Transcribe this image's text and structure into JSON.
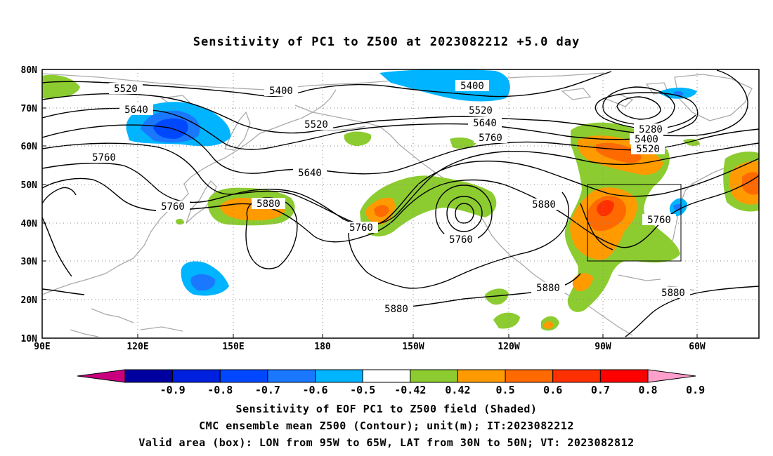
{
  "title": "Sensitivity of PC1 to Z500 at 2023082212 +5.0 day",
  "lat_labels": [
    "80N",
    "70N",
    "60N",
    "50N",
    "40N",
    "30N",
    "20N",
    "10N"
  ],
  "lon_labels": [
    "90E",
    "120E",
    "150E",
    "180",
    "150W",
    "120W",
    "90W",
    "60W"
  ],
  "contour_labels": [
    "5400",
    "5520",
    "5640",
    "5760",
    "5760",
    "5880",
    "5520",
    "5400",
    "5520",
    "5640",
    "5760",
    "5640",
    "5760",
    "5880",
    "5280",
    "5400",
    "5520",
    "5880",
    "5760",
    "5880",
    "5880",
    "5760"
  ],
  "colorbar": {
    "colors": [
      "#c8007f",
      "#0000a0",
      "#0020e0",
      "#0048ff",
      "#1a78ff",
      "#00b4ff",
      "#ffffff",
      "#8ccc30",
      "#ff9a00",
      "#ff6a00",
      "#ff3000",
      "#ff0000",
      "#ffa0cc"
    ],
    "labels": [
      "-0.9",
      "-0.8",
      "-0.7",
      "-0.6",
      "-0.5",
      "-0.42",
      "0.42",
      "0.5",
      "0.6",
      "0.7",
      "0.8",
      "0.9"
    ]
  },
  "caption": {
    "line1": "Sensitivity of EOF PC1 to Z500 field (Shaded)",
    "line2": "CMC ensemble mean Z500 (Contour); unit(m); IT:2023082212",
    "line3": "Valid area (box): LON from 95W to 65W, LAT from 30N to 50N; VT: 2023082812"
  }
}
